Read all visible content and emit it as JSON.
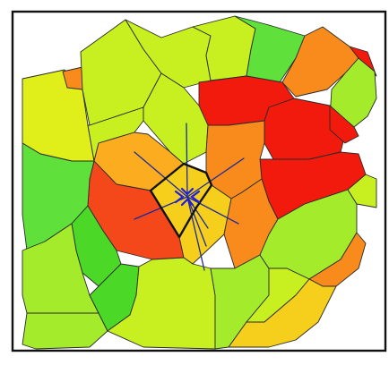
{
  "colors": {
    "frame": "#111111",
    "background": "#ffffff",
    "red": "#f21a0c",
    "red_orange": "#f4481a",
    "orange": "#f98a1c",
    "light_orange": "#fbad1f",
    "yellow": "#e0ee1a",
    "yellow_green": "#c8f020",
    "light_green": "#a3eb2b",
    "green": "#5fe03a",
    "bright_green": "#4cd826",
    "yellow_orange": "#f6cf1c",
    "ray": "#1c2a9c",
    "flow_arrow": "#1e1ee6"
  },
  "diagram": {
    "kind": "voronoi-cell-map",
    "focus_cell": "center-cell",
    "flow_rays": 8,
    "flow_arrows": 4
  }
}
